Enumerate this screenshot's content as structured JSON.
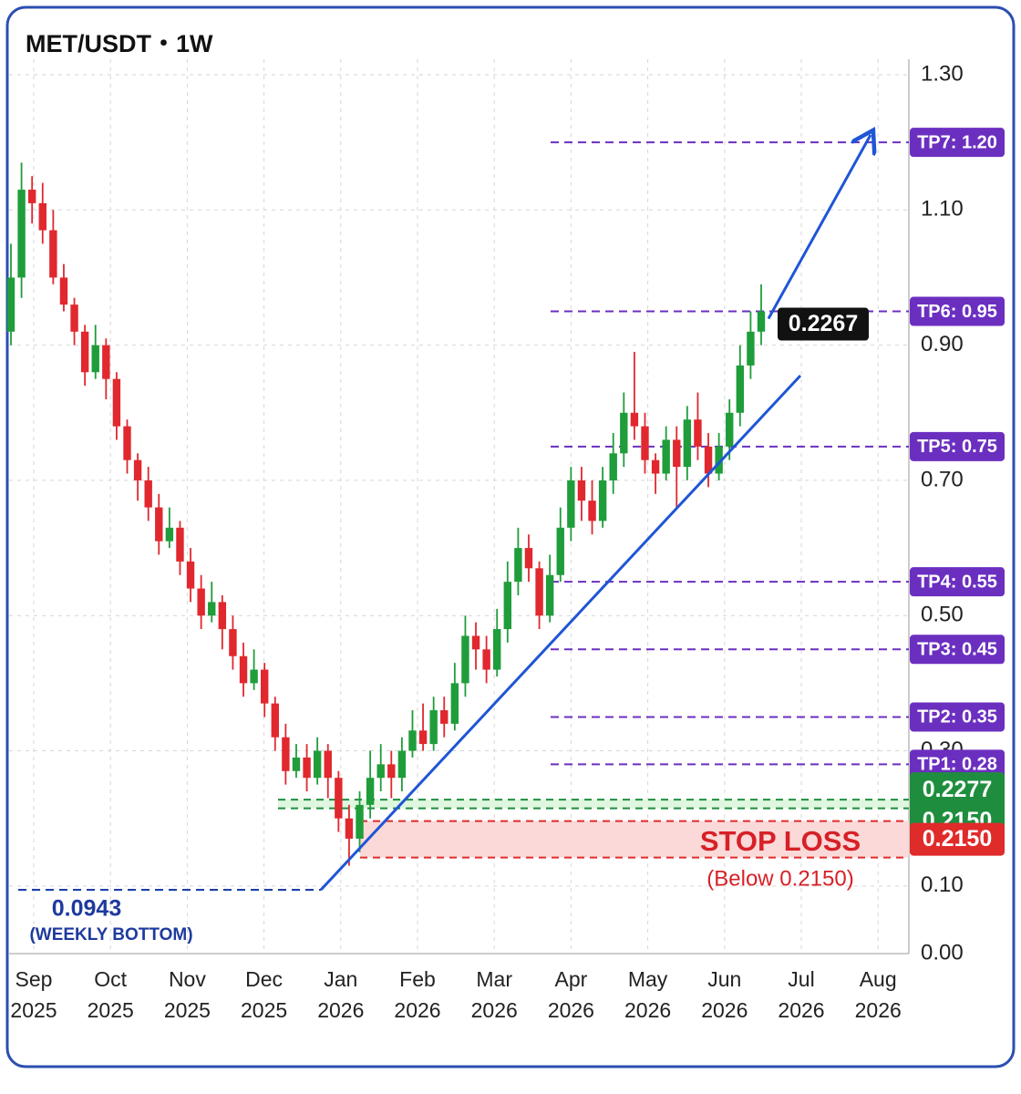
{
  "chart_data": {
    "type": "candlestick",
    "title": "MET/USDT・1W",
    "ylim": [
      0,
      1.3
    ],
    "yticks": [
      {
        "value": 1.3,
        "label": "1.30"
      },
      {
        "value": 1.1,
        "label": "1.10"
      },
      {
        "value": 0.9,
        "label": "0.90"
      },
      {
        "value": 0.7,
        "label": "0.70"
      },
      {
        "value": 0.5,
        "label": "0.50"
      },
      {
        "value": 0.3,
        "label": "0.30"
      },
      {
        "value": 0.1,
        "label": "0.10"
      },
      {
        "value": 0,
        "label": "0.00"
      }
    ],
    "grid": true,
    "x_labels": [
      {
        "month": "Sep",
        "year": "2025"
      },
      {
        "month": "Oct",
        "year": "2025"
      },
      {
        "month": "Nov",
        "year": "2025"
      },
      {
        "month": "Dec",
        "year": "2025"
      },
      {
        "month": "Jan",
        "year": "2026"
      },
      {
        "month": "Feb",
        "year": "2026"
      },
      {
        "month": "Mar",
        "year": "2026"
      },
      {
        "month": "Apr",
        "year": "2026"
      },
      {
        "month": "May",
        "year": "2026"
      },
      {
        "month": "Jun",
        "year": "2026"
      },
      {
        "month": "Jul",
        "year": "2026"
      },
      {
        "month": "Aug",
        "year": "2026"
      }
    ],
    "up_color": "#1f9d3a",
    "down_color": "#e0282e",
    "candles": {
      "open": [
        0.92,
        1.0,
        1.13,
        1.11,
        1.07,
        1.0,
        0.96,
        0.92,
        0.86,
        0.9,
        0.85,
        0.78,
        0.73,
        0.7,
        0.66,
        0.61,
        0.63,
        0.58,
        0.54,
        0.5,
        0.52,
        0.48,
        0.44,
        0.4,
        0.42,
        0.37,
        0.32,
        0.27,
        0.29,
        0.26,
        0.3,
        0.26,
        0.2,
        0.17,
        0.22,
        0.26,
        0.28,
        0.26,
        0.3,
        0.33,
        0.31,
        0.36,
        0.34,
        0.4,
        0.47,
        0.45,
        0.42,
        0.48,
        0.55,
        0.6,
        0.57,
        0.5,
        0.56,
        0.63,
        0.7,
        0.67,
        0.64,
        0.7,
        0.74,
        0.8,
        0.78,
        0.73,
        0.71,
        0.76,
        0.72,
        0.79,
        0.75,
        0.71,
        0.75,
        0.8,
        0.87,
        0.92
      ],
      "high": [
        1.05,
        1.17,
        1.15,
        1.14,
        1.1,
        1.02,
        0.97,
        0.93,
        0.93,
        0.91,
        0.86,
        0.79,
        0.74,
        0.72,
        0.68,
        0.66,
        0.64,
        0.6,
        0.56,
        0.55,
        0.53,
        0.5,
        0.46,
        0.45,
        0.43,
        0.38,
        0.34,
        0.31,
        0.31,
        0.32,
        0.31,
        0.27,
        0.22,
        0.24,
        0.3,
        0.31,
        0.3,
        0.32,
        0.36,
        0.37,
        0.38,
        0.38,
        0.43,
        0.5,
        0.49,
        0.47,
        0.51,
        0.58,
        0.63,
        0.62,
        0.58,
        0.59,
        0.66,
        0.72,
        0.72,
        0.7,
        0.72,
        0.77,
        0.83,
        0.89,
        0.8,
        0.74,
        0.78,
        0.78,
        0.81,
        0.83,
        0.77,
        0.77,
        0.82,
        0.9,
        0.95,
        0.99
      ],
      "low": [
        0.9,
        0.97,
        1.08,
        1.05,
        0.99,
        0.95,
        0.9,
        0.84,
        0.85,
        0.82,
        0.76,
        0.71,
        0.67,
        0.64,
        0.59,
        0.6,
        0.56,
        0.52,
        0.48,
        0.49,
        0.45,
        0.42,
        0.38,
        0.39,
        0.35,
        0.3,
        0.25,
        0.26,
        0.24,
        0.25,
        0.23,
        0.18,
        0.13,
        0.15,
        0.2,
        0.24,
        0.23,
        0.24,
        0.29,
        0.3,
        0.3,
        0.32,
        0.33,
        0.38,
        0.42,
        0.4,
        0.41,
        0.46,
        0.53,
        0.55,
        0.48,
        0.49,
        0.55,
        0.61,
        0.64,
        0.62,
        0.63,
        0.68,
        0.72,
        0.76,
        0.71,
        0.68,
        0.7,
        0.66,
        0.7,
        0.73,
        0.69,
        0.7,
        0.73,
        0.78,
        0.85,
        0.9
      ],
      "close": [
        1.0,
        1.13,
        1.11,
        1.07,
        1.0,
        0.96,
        0.92,
        0.86,
        0.9,
        0.85,
        0.78,
        0.73,
        0.7,
        0.66,
        0.61,
        0.63,
        0.58,
        0.54,
        0.5,
        0.52,
        0.48,
        0.44,
        0.4,
        0.42,
        0.37,
        0.32,
        0.27,
        0.29,
        0.26,
        0.3,
        0.26,
        0.2,
        0.17,
        0.22,
        0.26,
        0.28,
        0.26,
        0.3,
        0.33,
        0.31,
        0.36,
        0.34,
        0.4,
        0.47,
        0.45,
        0.42,
        0.48,
        0.55,
        0.6,
        0.57,
        0.5,
        0.56,
        0.63,
        0.7,
        0.67,
        0.64,
        0.7,
        0.74,
        0.8,
        0.78,
        0.73,
        0.71,
        0.76,
        0.72,
        0.79,
        0.75,
        0.71,
        0.75,
        0.8,
        0.87,
        0.92,
        0.95
      ]
    },
    "targets": [
      {
        "value": 1.2,
        "label": "TP7: 1.20"
      },
      {
        "value": 0.95,
        "label": "TP6: 0.95"
      },
      {
        "value": 0.75,
        "label": "TP5: 0.75"
      },
      {
        "value": 0.55,
        "label": "TP4: 0.55"
      },
      {
        "value": 0.45,
        "label": "TP3: 0.45"
      },
      {
        "value": 0.35,
        "label": "TP2: 0.35"
      },
      {
        "value": 0.28,
        "label": "TP1: 0.28"
      }
    ],
    "target_color": "#6b2fc0",
    "entry_zone": {
      "high": {
        "value": 0.2277,
        "label": "0.2277"
      },
      "low": {
        "value": 0.215,
        "label": "0.2150"
      },
      "color": "#1e8e3e"
    },
    "stop_zone": {
      "high": {
        "value": 0.215,
        "label": "0.2150"
      },
      "color": "#e02b2b"
    },
    "current_price": "0.2267",
    "stop_loss_title": "STOP LOSS",
    "stop_loss_note": "(Below 0.2150)",
    "bottom": {
      "value": 0.0943,
      "label": "0.0943",
      "note": "(WEEKLY BOTTOM)"
    },
    "trend_color": "#1f55d6"
  }
}
